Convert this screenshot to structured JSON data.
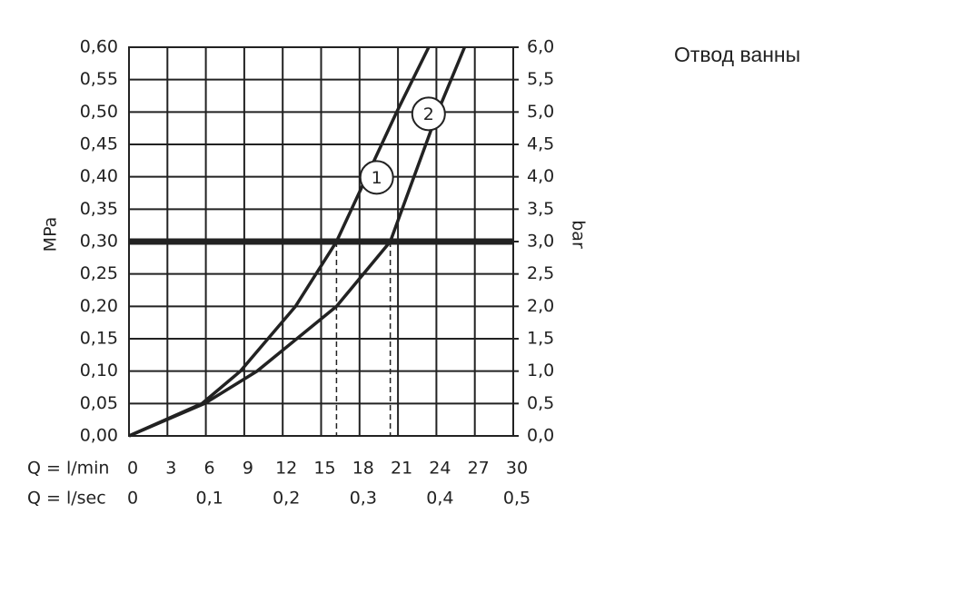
{
  "chart_data": {
    "type": "line",
    "title": "Отвод ванны",
    "ylabel": "MPa",
    "y2label": "bar",
    "xlabel": "Q = l/min",
    "x2label": "Q = l/sec",
    "xlim": [
      0,
      30
    ],
    "xticks": [
      0,
      3,
      6,
      9,
      12,
      15,
      18,
      21,
      24,
      27,
      30
    ],
    "x2lim": [
      0,
      0.5
    ],
    "x2ticks": [
      0,
      {
        "value": 0.1,
        "label": "0,1"
      },
      {
        "value": 0.2,
        "label": "0,2"
      },
      {
        "value": 0.3,
        "label": "0,3"
      },
      {
        "value": 0.4,
        "label": "0,4"
      },
      {
        "value": 0.5,
        "label": "0,5"
      }
    ],
    "ylim": [
      0,
      0.6
    ],
    "yticks": [
      {
        "value": 0,
        "label": "0,00"
      },
      {
        "value": 0.05,
        "label": "0,05"
      },
      {
        "value": 0.1,
        "label": "0,10"
      },
      {
        "value": 0.15,
        "label": "0,15"
      },
      {
        "value": 0.2,
        "label": "0,20"
      },
      {
        "value": 0.25,
        "label": "0,25"
      },
      {
        "value": 0.3,
        "label": "0,30"
      },
      {
        "value": 0.35,
        "label": "0,35"
      },
      {
        "value": 0.4,
        "label": "0,40"
      },
      {
        "value": 0.45,
        "label": "0,45"
      },
      {
        "value": 0.5,
        "label": "0,50"
      },
      {
        "value": 0.55,
        "label": "0,55"
      },
      {
        "value": 0.6,
        "label": "0,60"
      }
    ],
    "y2lim": [
      0,
      6
    ],
    "y2ticks": [
      {
        "value": 0,
        "label": "0,0"
      },
      {
        "value": 0.5,
        "label": "0,5"
      },
      {
        "value": 1,
        "label": "1,0"
      },
      {
        "value": 1.5,
        "label": "1,5"
      },
      {
        "value": 2,
        "label": "2,0"
      },
      {
        "value": 2.5,
        "label": "2,5"
      },
      {
        "value": 3,
        "label": "3,0"
      },
      {
        "value": 3.5,
        "label": "3,5"
      },
      {
        "value": 4,
        "label": "4,0"
      },
      {
        "value": 4.5,
        "label": "4,5"
      },
      {
        "value": 5,
        "label": "5,0"
      },
      {
        "value": 5.5,
        "label": "5,5"
      },
      {
        "value": 6,
        "label": "6,0"
      }
    ],
    "grid": true,
    "reference_line": 0.3,
    "series": [
      {
        "name": "1",
        "color": "#222222",
        "x": [
          0,
          5.7,
          8.7,
          13.0,
          16.2,
          20.9,
          23.4
        ],
        "values": [
          0,
          0.05,
          0.1,
          0.2,
          0.3,
          0.5,
          0.6
        ],
        "label_at": 5
      },
      {
        "name": "2",
        "color": "#222222",
        "x": [
          0,
          5.9,
          10.0,
          16.2,
          20.4,
          24.1,
          26.2
        ],
        "values": [
          0,
          0.05,
          0.1,
          0.2,
          0.3,
          0.5,
          0.6
        ],
        "label_at": 5
      }
    ]
  }
}
